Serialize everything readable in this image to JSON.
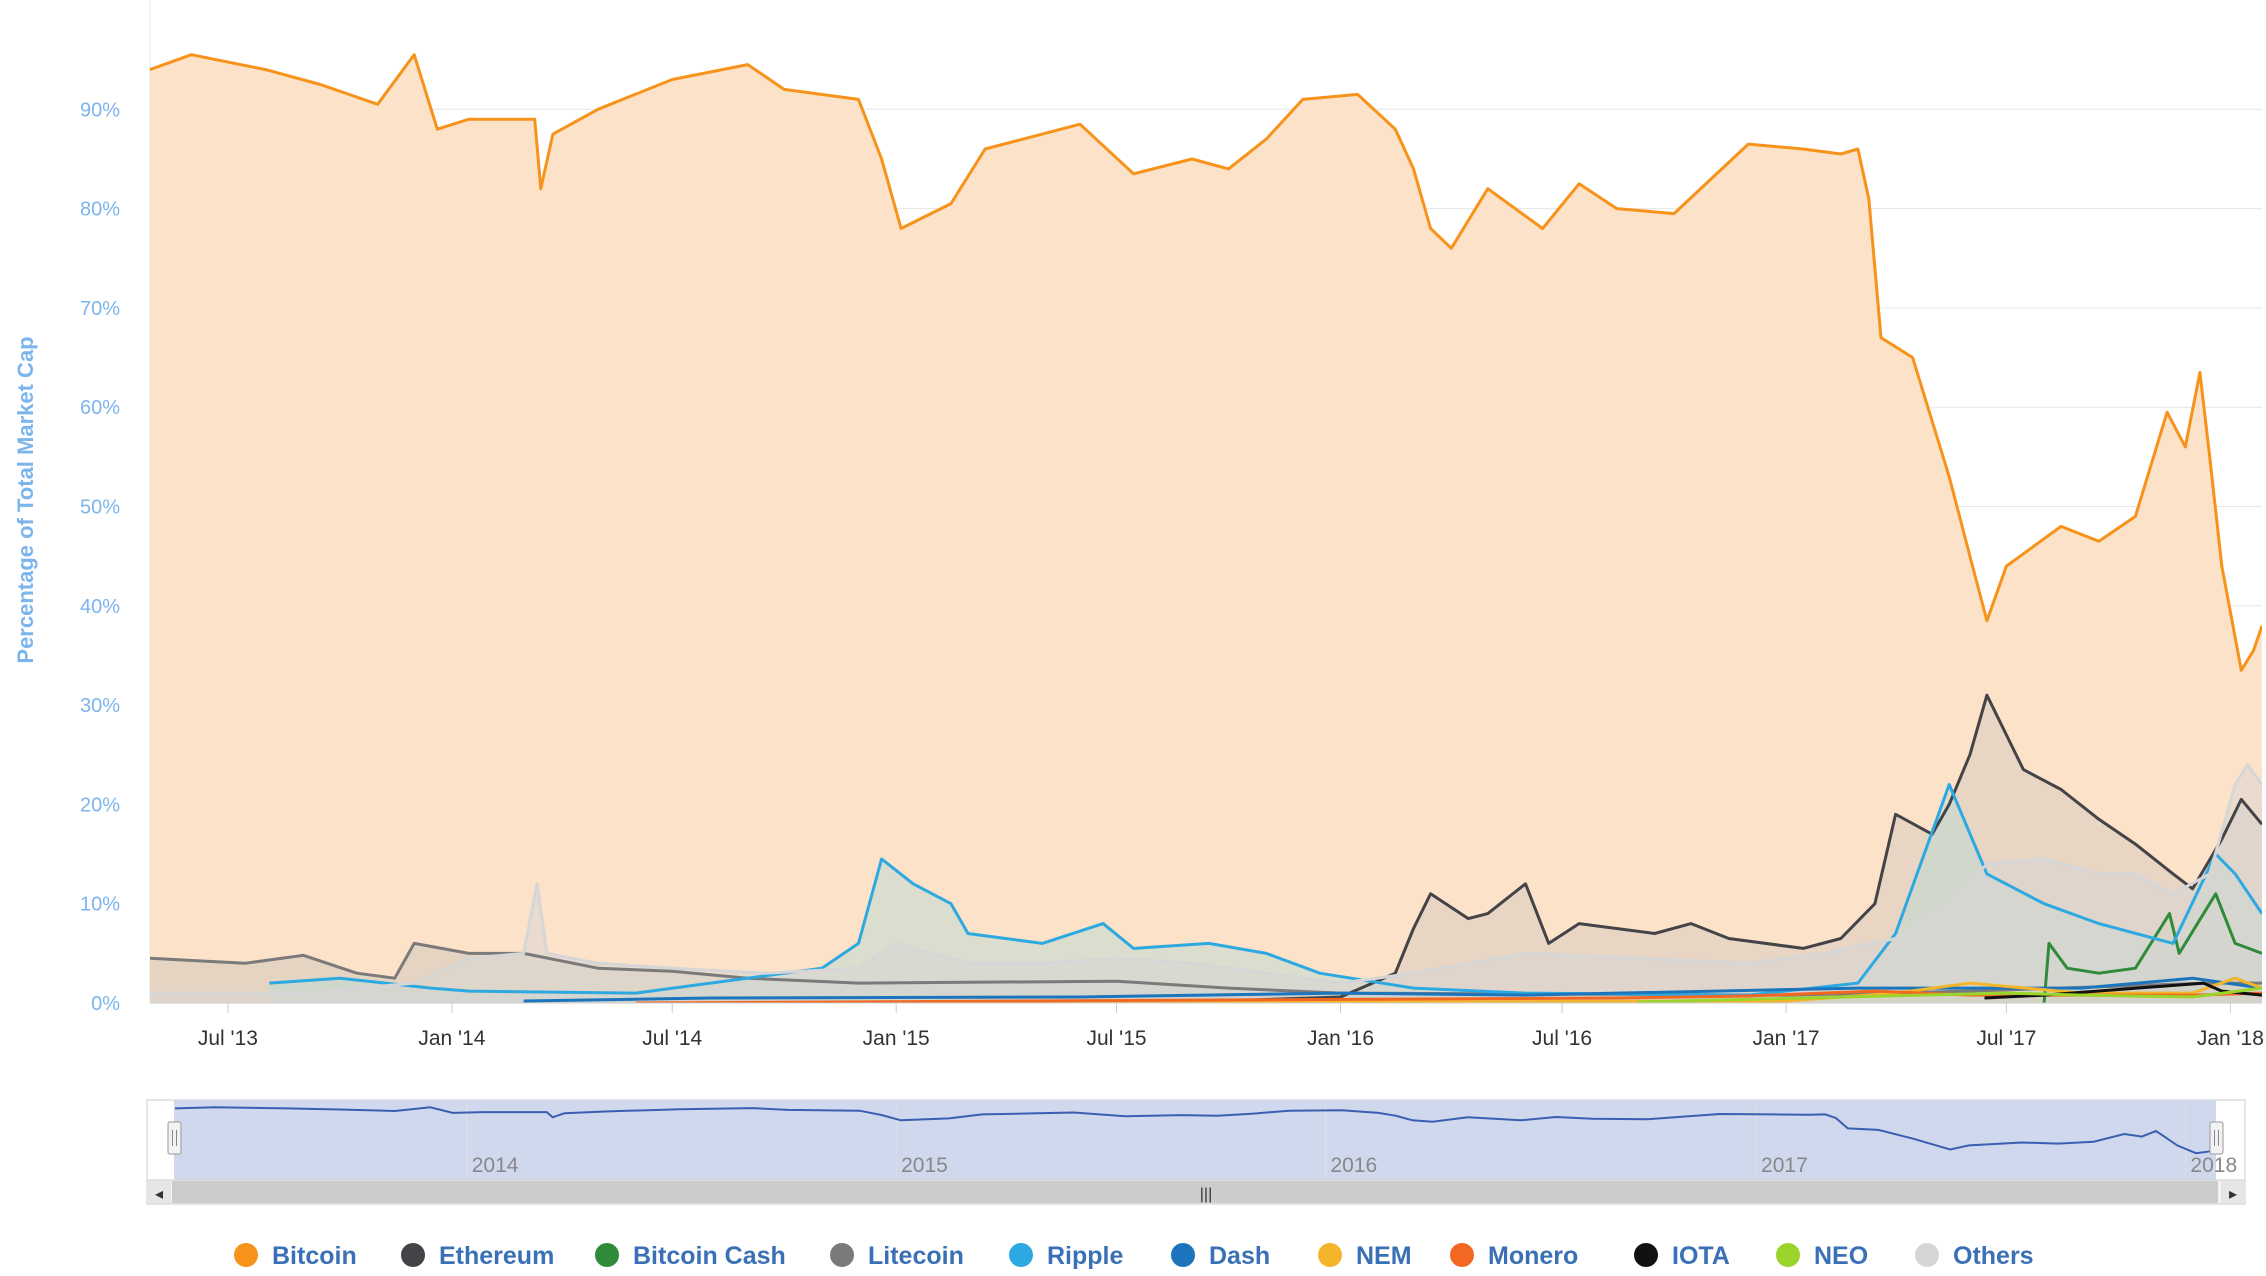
{
  "chart_data": {
    "type": "area",
    "ylabel": "Percentage of Total Market Cap",
    "y_tick_labels": [
      "0%",
      "10%",
      "20%",
      "30%",
      "40%",
      "50%",
      "60%",
      "70%",
      "80%",
      "90%"
    ],
    "y_tick_values": [
      0,
      10,
      20,
      30,
      40,
      50,
      60,
      70,
      80,
      90
    ],
    "ylim": [
      0,
      100
    ],
    "x_tick_labels": [
      "Jul '13",
      "Jan '14",
      "Jul '14",
      "Jan '15",
      "Jul '15",
      "Jan '16",
      "Jul '16",
      "Jan '17",
      "Jul '17",
      "Jan '18"
    ],
    "x_tick_values": [
      "2013-07-01",
      "2014-01-01",
      "2014-07-01",
      "2015-01-01",
      "2015-07-01",
      "2016-01-01",
      "2016-07-01",
      "2017-01-01",
      "2017-07-01",
      "2018-01-01"
    ],
    "xlim": [
      "2013-04-28",
      "2018-01-27"
    ],
    "navigator_tick_labels": [
      "2014",
      "2015",
      "2016",
      "2017",
      "2018"
    ],
    "navigator_tick_values": [
      "2014-01-01",
      "2015-01-01",
      "2016-01-01",
      "2017-01-01",
      "2018-01-01"
    ],
    "grid": true,
    "legend_position": "bottom",
    "series": [
      {
        "name": "Bitcoin",
        "color": "#f7931a",
        "fill": "#fce2c8",
        "points": [
          [
            "2013-04-28",
            94
          ],
          [
            "2013-06-01",
            95.5
          ],
          [
            "2013-08-01",
            94
          ],
          [
            "2013-09-15",
            92.5
          ],
          [
            "2013-11-01",
            90.5
          ],
          [
            "2013-12-01",
            95.5
          ],
          [
            "2013-12-20",
            88
          ],
          [
            "2014-01-15",
            89
          ],
          [
            "2014-02-15",
            89
          ],
          [
            "2014-03-10",
            89
          ],
          [
            "2014-03-15",
            82
          ],
          [
            "2014-03-25",
            87.5
          ],
          [
            "2014-05-01",
            90
          ],
          [
            "2014-07-01",
            93
          ],
          [
            "2014-09-01",
            94.5
          ],
          [
            "2014-10-01",
            92
          ],
          [
            "2014-12-01",
            91
          ],
          [
            "2014-12-20",
            85
          ],
          [
            "2015-01-05",
            78
          ],
          [
            "2015-02-15",
            80.5
          ],
          [
            "2015-03-15",
            86
          ],
          [
            "2015-05-01",
            87.5
          ],
          [
            "2015-06-01",
            88.5
          ],
          [
            "2015-07-15",
            83.5
          ],
          [
            "2015-09-01",
            85
          ],
          [
            "2015-10-01",
            84
          ],
          [
            "2015-11-01",
            87
          ],
          [
            "2015-12-01",
            91
          ],
          [
            "2016-01-15",
            91.5
          ],
          [
            "2016-02-15",
            88
          ],
          [
            "2016-03-01",
            84
          ],
          [
            "2016-03-15",
            78
          ],
          [
            "2016-04-01",
            76
          ],
          [
            "2016-05-01",
            82
          ],
          [
            "2016-06-15",
            78
          ],
          [
            "2016-07-15",
            82.5
          ],
          [
            "2016-08-15",
            80
          ],
          [
            "2016-10-01",
            79.5
          ],
          [
            "2016-12-01",
            86.5
          ],
          [
            "2017-01-15",
            86
          ],
          [
            "2017-02-15",
            85.5
          ],
          [
            "2017-03-01",
            86
          ],
          [
            "2017-03-10",
            81
          ],
          [
            "2017-03-20",
            67
          ],
          [
            "2017-04-15",
            65
          ],
          [
            "2017-05-15",
            53
          ],
          [
            "2017-06-01",
            45
          ],
          [
            "2017-06-15",
            38.5
          ],
          [
            "2017-07-01",
            44
          ],
          [
            "2017-08-15",
            48
          ],
          [
            "2017-09-15",
            46.5
          ],
          [
            "2017-10-15",
            49
          ],
          [
            "2017-11-10",
            59.5
          ],
          [
            "2017-11-25",
            56
          ],
          [
            "2017-12-07",
            63.5
          ],
          [
            "2017-12-15",
            55
          ],
          [
            "2017-12-25",
            44
          ],
          [
            "2018-01-10",
            33.5
          ],
          [
            "2018-01-20",
            35.5
          ],
          [
            "2018-01-27",
            38
          ]
        ]
      },
      {
        "name": "Ethereum",
        "color": "#434348",
        "fill": "#d9cbc1",
        "points": [
          [
            "2015-08-07",
            0
          ],
          [
            "2016-01-01",
            0.6
          ],
          [
            "2016-02-15",
            3
          ],
          [
            "2016-03-01",
            7.5
          ],
          [
            "2016-03-15",
            11
          ],
          [
            "2016-04-15",
            8.5
          ],
          [
            "2016-05-01",
            9
          ],
          [
            "2016-06-01",
            12
          ],
          [
            "2016-06-20",
            6
          ],
          [
            "2016-07-15",
            8
          ],
          [
            "2016-09-15",
            7
          ],
          [
            "2016-10-15",
            8
          ],
          [
            "2016-11-15",
            6.5
          ],
          [
            "2017-01-15",
            5.5
          ],
          [
            "2017-02-15",
            6.5
          ],
          [
            "2017-03-15",
            10
          ],
          [
            "2017-04-01",
            19
          ],
          [
            "2017-05-01",
            17
          ],
          [
            "2017-05-15",
            20
          ],
          [
            "2017-06-01",
            25
          ],
          [
            "2017-06-15",
            31
          ],
          [
            "2017-07-01",
            27
          ],
          [
            "2017-07-15",
            23.5
          ],
          [
            "2017-08-15",
            21.5
          ],
          [
            "2017-09-15",
            18.5
          ],
          [
            "2017-10-15",
            16
          ],
          [
            "2017-11-15",
            13
          ],
          [
            "2017-12-01",
            11.5
          ],
          [
            "2017-12-25",
            16.5
          ],
          [
            "2018-01-10",
            20.5
          ],
          [
            "2018-01-27",
            18
          ]
        ]
      },
      {
        "name": "Bitcoin Cash",
        "color": "#2f8a3a",
        "fill": "#cfd2b4",
        "points": [
          [
            "2017-08-01",
            0
          ],
          [
            "2017-08-05",
            6
          ],
          [
            "2017-08-20",
            3.5
          ],
          [
            "2017-09-15",
            3
          ],
          [
            "2017-10-15",
            3.5
          ],
          [
            "2017-11-12",
            9
          ],
          [
            "2017-11-20",
            5
          ],
          [
            "2017-12-20",
            11
          ],
          [
            "2018-01-05",
            6
          ],
          [
            "2018-01-27",
            5
          ]
        ]
      },
      {
        "name": "Litecoin",
        "color": "#7a7a7a",
        "fill": "#d2c8bc",
        "points": [
          [
            "2013-04-28",
            4.5
          ],
          [
            "2013-07-15",
            4
          ],
          [
            "2013-09-01",
            4.8
          ],
          [
            "2013-10-15",
            3
          ],
          [
            "2013-11-15",
            2.5
          ],
          [
            "2013-12-01",
            6
          ],
          [
            "2014-01-15",
            5
          ],
          [
            "2014-03-01",
            5
          ],
          [
            "2014-05-01",
            3.5
          ],
          [
            "2014-07-01",
            3.2
          ],
          [
            "2014-09-01",
            2.5
          ],
          [
            "2014-12-01",
            2
          ],
          [
            "2015-07-01",
            2.2
          ],
          [
            "2015-10-01",
            1.5
          ],
          [
            "2016-01-01",
            1
          ],
          [
            "2017-01-01",
            0.8
          ],
          [
            "2017-06-01",
            1.2
          ],
          [
            "2017-12-15",
            2
          ],
          [
            "2018-01-27",
            2
          ]
        ]
      },
      {
        "name": "Ripple",
        "color": "#2da9e1",
        "fill": "#c0d8d3",
        "points": [
          [
            "2013-08-04",
            2
          ],
          [
            "2013-10-01",
            2.5
          ],
          [
            "2013-12-15",
            1.5
          ],
          [
            "2014-01-15",
            1.2
          ],
          [
            "2014-06-01",
            1
          ],
          [
            "2014-11-01",
            3.5
          ],
          [
            "2014-12-01",
            6
          ],
          [
            "2014-12-20",
            14.5
          ],
          [
            "2015-01-15",
            12
          ],
          [
            "2015-02-15",
            10
          ],
          [
            "2015-03-01",
            7
          ],
          [
            "2015-05-01",
            6
          ],
          [
            "2015-06-20",
            8
          ],
          [
            "2015-07-15",
            5.5
          ],
          [
            "2015-09-15",
            6
          ],
          [
            "2015-11-01",
            5
          ],
          [
            "2015-12-15",
            3
          ],
          [
            "2016-03-01",
            1.5
          ],
          [
            "2016-06-01",
            1
          ],
          [
            "2016-12-01",
            0.8
          ],
          [
            "2017-03-01",
            2
          ],
          [
            "2017-04-01",
            7
          ],
          [
            "2017-05-15",
            22
          ],
          [
            "2017-06-15",
            13
          ],
          [
            "2017-08-01",
            10
          ],
          [
            "2017-09-15",
            8
          ],
          [
            "2017-11-15",
            6
          ],
          [
            "2017-12-20",
            15
          ],
          [
            "2018-01-05",
            13
          ],
          [
            "2018-01-27",
            9
          ]
        ]
      },
      {
        "name": "Dash",
        "color": "#1c75bc",
        "fill": "#c4ccc8",
        "points": [
          [
            "2014-03-01",
            0.2
          ],
          [
            "2014-08-01",
            0.5
          ],
          [
            "2015-06-01",
            0.6
          ],
          [
            "2016-01-01",
            1
          ],
          [
            "2016-06-01",
            0.8
          ],
          [
            "2017-03-01",
            1.5
          ],
          [
            "2017-06-01",
            1.5
          ],
          [
            "2017-09-01",
            1.5
          ],
          [
            "2017-12-01",
            2.5
          ],
          [
            "2018-01-27",
            1.5
          ]
        ]
      },
      {
        "name": "NEM",
        "color": "#f4b52b",
        "fill": "#d8d4b0",
        "points": [
          [
            "2015-04-01",
            0
          ],
          [
            "2016-01-01",
            0.1
          ],
          [
            "2017-01-01",
            0.2
          ],
          [
            "2017-04-01",
            1
          ],
          [
            "2017-06-01",
            2
          ],
          [
            "2017-09-01",
            1
          ],
          [
            "2017-12-01",
            1
          ],
          [
            "2018-01-05",
            2.5
          ],
          [
            "2018-01-27",
            1.5
          ]
        ]
      },
      {
        "name": "Monero",
        "color": "#f26822",
        "fill": "#d8c8b4",
        "points": [
          [
            "2014-06-01",
            0
          ],
          [
            "2016-08-15",
            0.5
          ],
          [
            "2016-12-01",
            0.7
          ],
          [
            "2017-03-15",
            1.2
          ],
          [
            "2017-06-01",
            0.8
          ],
          [
            "2017-12-01",
            0.8
          ],
          [
            "2018-01-27",
            1
          ]
        ]
      },
      {
        "name": "IOTA",
        "color": "#111111",
        "fill": "#c8c4be",
        "points": [
          [
            "2017-06-13",
            0.5
          ],
          [
            "2017-08-01",
            0.8
          ],
          [
            "2017-12-10",
            2
          ],
          [
            "2017-12-25",
            1.2
          ],
          [
            "2018-01-27",
            0.8
          ]
        ]
      },
      {
        "name": "NEO",
        "color": "#9bd42b",
        "fill": "#d2d8b0",
        "points": [
          [
            "2016-09-01",
            0.1
          ],
          [
            "2017-07-01",
            1
          ],
          [
            "2017-09-01",
            0.8
          ],
          [
            "2017-12-01",
            0.6
          ],
          [
            "2018-01-27",
            1.5
          ]
        ]
      },
      {
        "name": "Others",
        "color": "#d6d6d6",
        "fill": "#d9d6d4",
        "points": [
          [
            "2013-04-28",
            1
          ],
          [
            "2013-09-01",
            1
          ],
          [
            "2013-12-01",
            2
          ],
          [
            "2014-01-15",
            4.5
          ],
          [
            "2014-03-01",
            5
          ],
          [
            "2014-03-12",
            12
          ],
          [
            "2014-03-20",
            5
          ],
          [
            "2014-05-01",
            4
          ],
          [
            "2014-07-01",
            3.5
          ],
          [
            "2014-09-15",
            3
          ],
          [
            "2014-12-01",
            3.5
          ],
          [
            "2015-01-01",
            6
          ],
          [
            "2015-03-01",
            4
          ],
          [
            "2015-05-01",
            4
          ],
          [
            "2015-07-01",
            4.5
          ],
          [
            "2015-09-01",
            4
          ],
          [
            "2015-11-01",
            3
          ],
          [
            "2016-01-01",
            2
          ],
          [
            "2016-03-01",
            3
          ],
          [
            "2016-06-01",
            5
          ],
          [
            "2016-09-01",
            4.5
          ],
          [
            "2016-12-01",
            4
          ],
          [
            "2017-02-01",
            5
          ],
          [
            "2017-04-01",
            6.5
          ],
          [
            "2017-05-15",
            10
          ],
          [
            "2017-06-15",
            14
          ],
          [
            "2017-08-01",
            14.5
          ],
          [
            "2017-09-15",
            13
          ],
          [
            "2017-10-15",
            13
          ],
          [
            "2017-11-15",
            11
          ],
          [
            "2017-12-15",
            13
          ],
          [
            "2018-01-05",
            22
          ],
          [
            "2018-01-15",
            24
          ],
          [
            "2018-01-27",
            22
          ]
        ]
      }
    ],
    "navigator_series": "Bitcoin"
  },
  "navigator": {
    "scroll_grip": "|||",
    "left_handle_icon": "grip-icon",
    "right_handle_icon": "grip-icon",
    "left_arrow": "◂",
    "right_arrow": "▸"
  }
}
